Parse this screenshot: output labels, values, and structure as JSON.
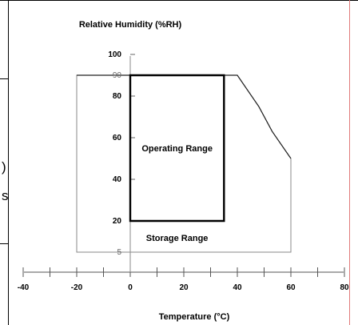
{
  "page": {
    "cut_text_1": ")",
    "cut_text_2": "s"
  },
  "chart_data": {
    "type": "area",
    "title": "",
    "xlabel": "Temperature (°C)",
    "ylabel": "Relative Humidity (%RH)",
    "xlim": [
      -40,
      80
    ],
    "ylim": [
      0,
      100
    ],
    "x_ticks": [
      -40,
      -20,
      0,
      20,
      40,
      60,
      80
    ],
    "y_ticks_main": [
      20,
      40,
      60,
      80,
      100
    ],
    "y_ticks_extra": [
      5,
      90
    ],
    "grid": false,
    "regions": [
      {
        "name": "Operating Range",
        "polygon": [
          [
            0,
            20
          ],
          [
            0,
            90
          ],
          [
            35,
            90
          ],
          [
            35,
            20
          ]
        ]
      },
      {
        "name": "Storage Range",
        "polygon": [
          [
            -20,
            5
          ],
          [
            -20,
            90
          ],
          [
            40,
            90
          ],
          [
            48,
            75
          ],
          [
            53,
            63
          ],
          [
            60,
            50
          ],
          [
            60,
            5
          ]
        ]
      }
    ]
  }
}
